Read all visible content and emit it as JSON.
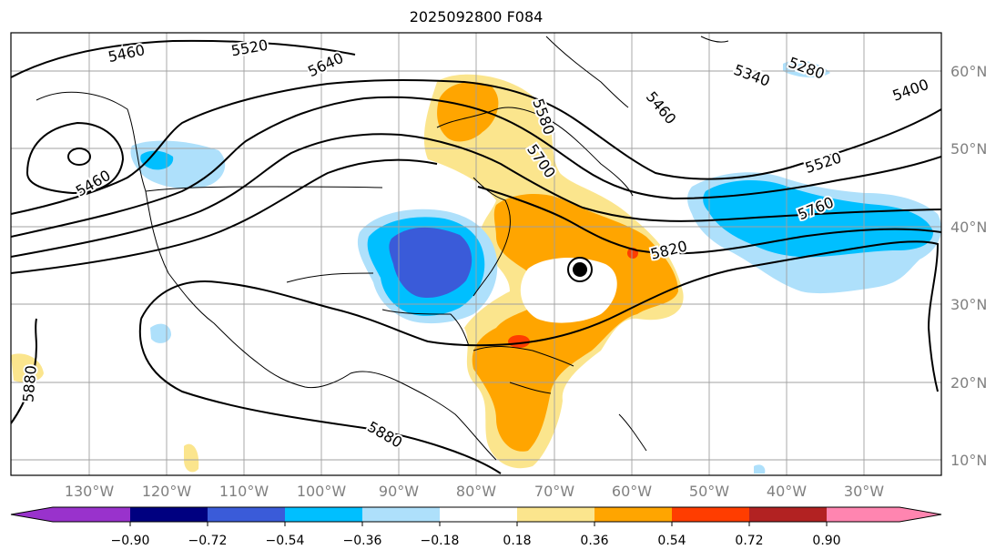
{
  "title": "2025092800 F084",
  "axes": {
    "lon_labels": [
      "130°W",
      "120°W",
      "110°W",
      "100°W",
      "90°W",
      "80°W",
      "70°W",
      "60°W",
      "50°W",
      "40°W",
      "30°W"
    ],
    "lat_labels": [
      "60°N",
      "50°N",
      "40°N",
      "30°N",
      "20°N",
      "10°N"
    ]
  },
  "contour_labels": [
    "5460",
    "5520",
    "5640",
    "5460",
    "5580",
    "5700",
    "5460",
    "5340",
    "5280",
    "5400",
    "5520",
    "5760",
    "5820",
    "5880",
    "5880"
  ],
  "colorbar": {
    "colors": [
      "#9932cc",
      "#000080",
      "#3a5bd9",
      "#00bfff",
      "#aee0fb",
      "#ffffff",
      "#fbe58d",
      "#ffa500",
      "#ff3d00",
      "#b22222",
      "#ff85b0"
    ],
    "tick_labels": [
      "−0.90",
      "−0.72",
      "−0.54",
      "−0.36",
      "−0.18",
      "0.18",
      "0.36",
      "0.54",
      "0.72",
      "0.90"
    ]
  },
  "legend_colors": {
    "land_outline": "#000000",
    "contour": "#000000",
    "grid": "#a0a0a0"
  },
  "marker": {
    "name": "storm-center",
    "color": "#000000"
  }
}
